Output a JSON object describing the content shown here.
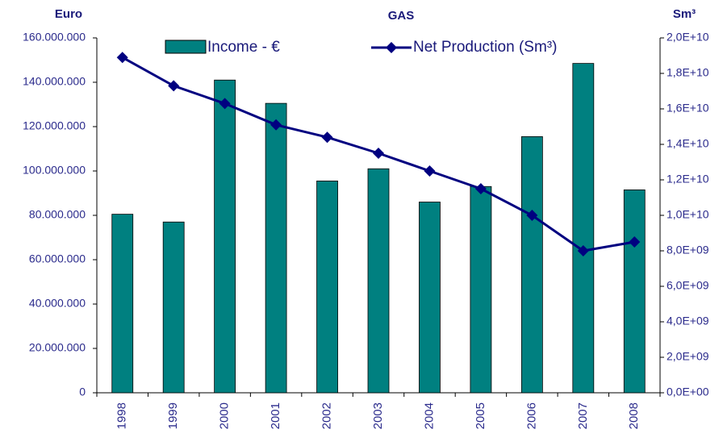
{
  "chart_data": {
    "type": "bar_line",
    "title": "GAS",
    "y_label": "Euro",
    "y2_label": "Sm³",
    "categories": [
      "1998",
      "1999",
      "2000",
      "2001",
      "2002",
      "2003",
      "2004",
      "2005",
      "2006",
      "2007",
      "2008"
    ],
    "series": [
      {
        "name": "Income - €",
        "type": "bar",
        "color": "#008080",
        "values": [
          80500000,
          77000000,
          141000000,
          130500000,
          95500000,
          101000000,
          86000000,
          93000000,
          115500000,
          148500000,
          91500000
        ]
      },
      {
        "name": "Net Production (Sm³)",
        "type": "line",
        "axis": "y2",
        "color": "#000080",
        "values": [
          18900000000,
          17300000000,
          16300000000,
          15100000000,
          14400000000,
          13500000000,
          12500000000,
          11500000000,
          10000000000,
          8000000000,
          8500000000
        ]
      }
    ],
    "ylim": [
      0,
      160000000
    ],
    "yticks": [
      0,
      {
        "value": 20000000,
        "label": "20.000.000"
      },
      {
        "value": 40000000,
        "label": "40.000.000"
      },
      {
        "value": 60000000,
        "label": "60.000.000"
      },
      {
        "value": 80000000,
        "label": "80.000.000"
      },
      {
        "value": 100000000,
        "label": "100.000.000"
      },
      {
        "value": 120000000,
        "label": "120.000.000"
      },
      {
        "value": 140000000,
        "label": "140.000.000"
      },
      {
        "value": 160000000,
        "label": "160.000.000"
      }
    ],
    "y2lim": [
      0,
      20000000000
    ],
    "y2ticks": [
      {
        "value": 0,
        "label": "0,0E+00"
      },
      {
        "value": 2000000000,
        "label": "2,0E+09"
      },
      {
        "value": 4000000000,
        "label": "4,0E+09"
      },
      {
        "value": 6000000000,
        "label": "6,0E+09"
      },
      {
        "value": 8000000000,
        "label": "8,0E+09"
      },
      {
        "value": 10000000000,
        "label": "1,0E+10"
      },
      {
        "value": 12000000000,
        "label": "1,2E+10"
      },
      {
        "value": 14000000000,
        "label": "1,4E+10"
      },
      {
        "value": 16000000000,
        "label": "1,6E+10"
      },
      {
        "value": 18000000000,
        "label": "1,8E+10"
      },
      {
        "value": 20000000000,
        "label": "2,0E+10"
      }
    ]
  }
}
